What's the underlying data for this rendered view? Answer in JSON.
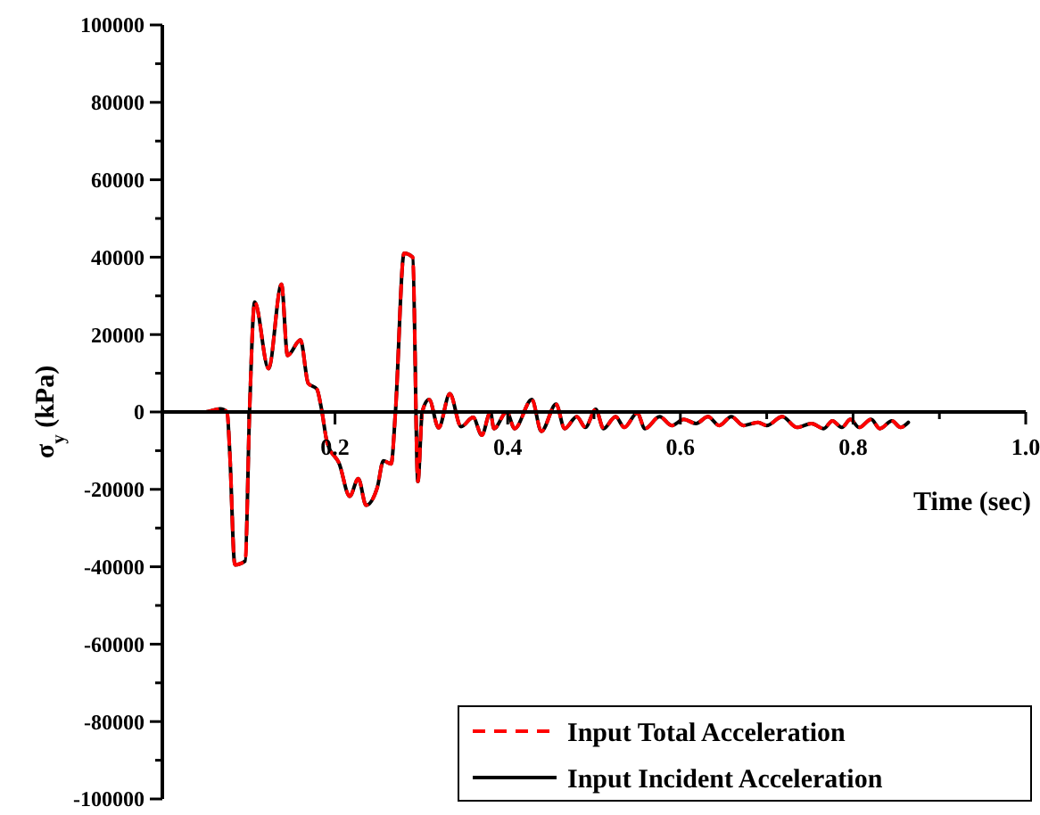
{
  "chart_data": {
    "type": "line",
    "xlabel": "Time (sec)",
    "ylabel": "σ$_{y}$ (kPa)",
    "xlim": [
      0,
      1
    ],
    "xticks": [
      {
        "value": 0.1,
        "label": null
      },
      0.2,
      {
        "value": 0.3,
        "label": null
      },
      0.4,
      {
        "value": 0.5,
        "label": null
      },
      0.6,
      {
        "value": 0.7,
        "label": null
      },
      0.8,
      {
        "value": 0.9,
        "label": null
      },
      {
        "value": 1,
        "label": "1.0"
      }
    ],
    "ylim": [
      -100000,
      100000
    ],
    "yticks": [
      -100000,
      {
        "value": -90000,
        "label": null
      },
      -80000,
      {
        "value": -70000,
        "label": null
      },
      -60000,
      {
        "value": -50000,
        "label": null
      },
      -40000,
      {
        "value": -30000,
        "label": null
      },
      -20000,
      {
        "value": -10000,
        "label": null
      },
      0,
      {
        "value": 10000,
        "label": null
      },
      20000,
      {
        "value": 30000,
        "label": null
      },
      40000,
      {
        "value": 50000,
        "label": null
      },
      60000,
      {
        "value": 70000,
        "label": null
      },
      80000,
      {
        "value": 90000,
        "label": null
      },
      100000
    ],
    "grid": false,
    "legend": "bottom right",
    "x": [
      0,
      0.05,
      0.067,
      0.075,
      0.078,
      0.084,
      0.096,
      0.101,
      0.107,
      0.123,
      0.138,
      0.145,
      0.16,
      0.169,
      0.179,
      0.184,
      0.191,
      0.205,
      0.217,
      0.227,
      0.236,
      0.249,
      0.256,
      0.265,
      0.27,
      0.28,
      0.29,
      0.296,
      0.301,
      0.309,
      0.32,
      0.333,
      0.346,
      0.36,
      0.37,
      0.38,
      0.384,
      0.399,
      0.408,
      0.428,
      0.439,
      0.456,
      0.466,
      0.48,
      0.49,
      0.502,
      0.511,
      0.525,
      0.535,
      0.55,
      0.559,
      0.576,
      0.59,
      0.604,
      0.618,
      0.632,
      0.645,
      0.659,
      0.673,
      0.69,
      0.7,
      0.718,
      0.735,
      0.752,
      0.766,
      0.776,
      0.787,
      0.797,
      0.807,
      0.821,
      0.831,
      0.845,
      0.855,
      0.864
    ],
    "series": [
      {
        "name": "Input Total Acceleration",
        "color": "#ff0000",
        "line_style": "dashed",
        "values": [
          0,
          0,
          800,
          0,
          -10000,
          -39500,
          -38500,
          0,
          28400,
          11200,
          33000,
          14600,
          18600,
          7400,
          5900,
          1200,
          -8000,
          -13400,
          -21800,
          -17200,
          -24100,
          -19500,
          -12600,
          -13400,
          0,
          41000,
          40000,
          -18000,
          0,
          3200,
          -4100,
          4700,
          -3800,
          -1400,
          -6000,
          0,
          -4300,
          0,
          -4300,
          3200,
          -5000,
          2000,
          -4300,
          -1200,
          -4000,
          700,
          -4300,
          -1200,
          -4000,
          -300,
          -4300,
          -1200,
          -3500,
          -1900,
          -3000,
          -1200,
          -3500,
          -1200,
          -3500,
          -2700,
          -3500,
          -1200,
          -4000,
          -3000,
          -4300,
          -2300,
          -4000,
          -1900,
          -4000,
          -1900,
          -4300,
          -2300,
          -4000,
          -2700
        ]
      },
      {
        "name": "Input Incident Acceleration",
        "color": "#000000",
        "line_style": "solid",
        "values": [
          0,
          0,
          800,
          0,
          -10000,
          -39500,
          -38500,
          0,
          28400,
          11200,
          33000,
          14600,
          18600,
          7400,
          5900,
          1200,
          -8000,
          -13400,
          -21800,
          -17200,
          -24100,
          -19500,
          -12600,
          -13400,
          0,
          41000,
          40000,
          -18000,
          0,
          3200,
          -4100,
          4700,
          -3800,
          -1400,
          -6000,
          0,
          -4300,
          0,
          -4300,
          3200,
          -5000,
          2000,
          -4300,
          -1200,
          -4000,
          700,
          -4300,
          -1200,
          -4000,
          -300,
          -4300,
          -1200,
          -3500,
          -1900,
          -3000,
          -1200,
          -3500,
          -1200,
          -3500,
          -2700,
          -3500,
          -1200,
          -4000,
          -3000,
          -4300,
          -2300,
          -4000,
          -1900,
          -4000,
          -1900,
          -4300,
          -2300,
          -4000,
          -2700
        ]
      }
    ]
  }
}
